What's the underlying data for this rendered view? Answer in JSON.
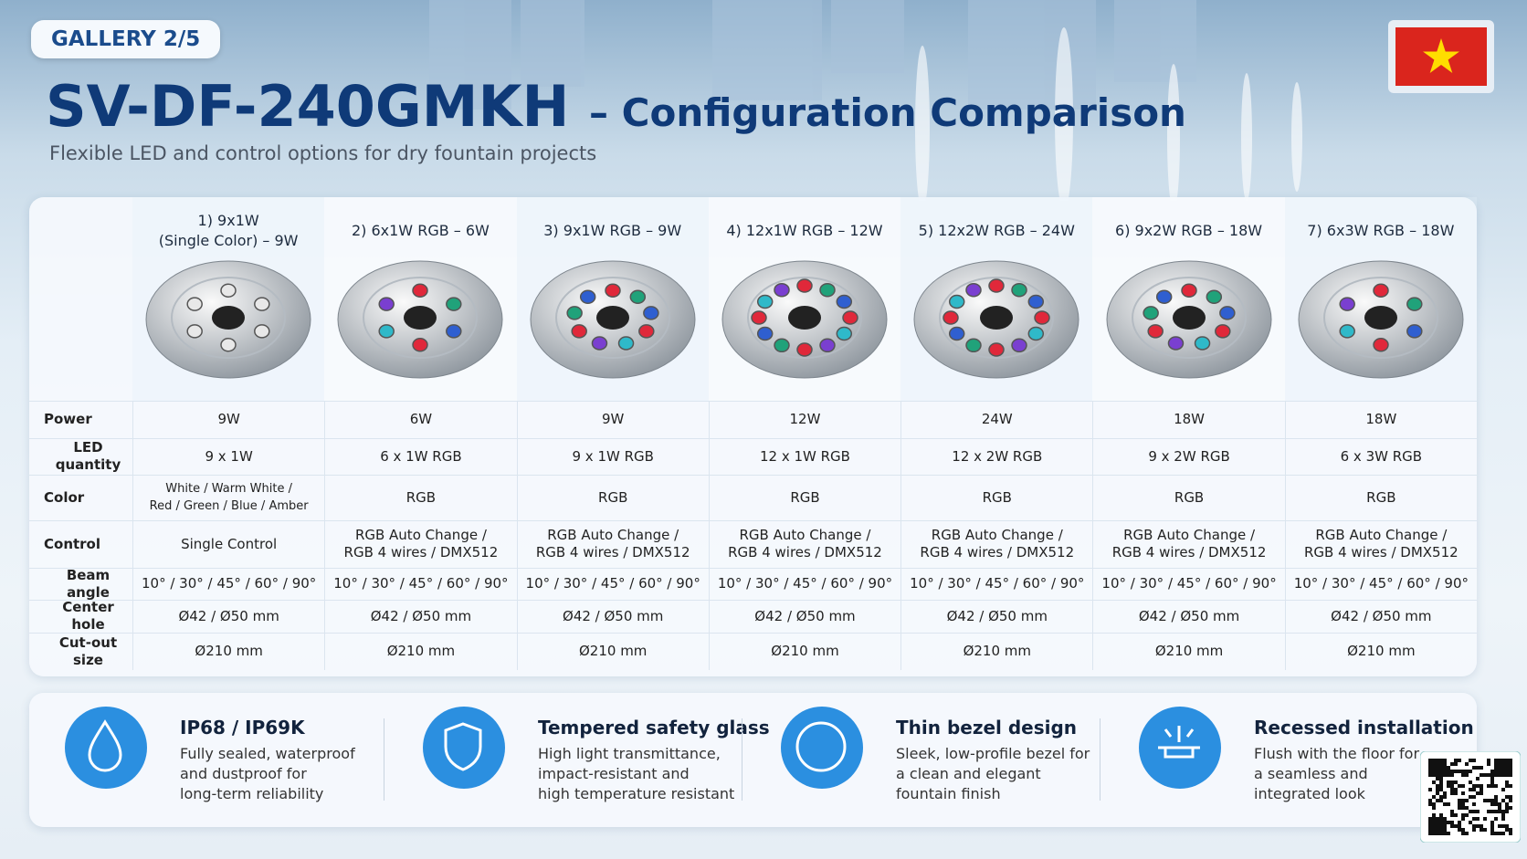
{
  "header": {
    "badge": "GALLERY 2/5",
    "title": "SV-DF-240GMKH",
    "title_suffix": "– Configuration Comparison",
    "subtitle": "Flexible LED and control options for dry fountain projects"
  },
  "table": {
    "columns": [
      [
        "1) 9x1W",
        "(Single Color) – 9W"
      ],
      "2) 6x1W RGB – 6W",
      "3) 9x1W RGB – 9W",
      "4) 12x1W RGB – 12W",
      "5) 12x2W RGB – 24W",
      "6) 9x2W RGB – 18W",
      "7) 6x3W RGB – 18W"
    ],
    "rows": [
      {
        "label": "Power",
        "cells": [
          "9W",
          "6W",
          "9W",
          "12W",
          "24W",
          "18W",
          "18W"
        ]
      },
      {
        "label": "LED quantity",
        "cells": [
          "9 x 1W",
          "6 x 1W RGB",
          "9 x 1W RGB",
          "12 x 1W RGB",
          "12 x 2W RGB",
          "9 x 2W RGB",
          "6 x 3W RGB"
        ]
      },
      {
        "label": "Color",
        "cells": [
          [
            "White / Warm White /",
            "Red / Green / Blue / Amber"
          ],
          "RGB",
          "RGB",
          "RGB",
          "RGB",
          "RGB",
          "RGB"
        ]
      },
      {
        "label": "Control",
        "cells": [
          "Single Control",
          [
            "RGB Auto Change /",
            "RGB 4 wires / DMX512"
          ],
          [
            "RGB Auto Change /",
            "RGB 4 wires / DMX512"
          ],
          [
            "RGB Auto Change /",
            "RGB 4 wires / DMX512"
          ],
          [
            "RGB Auto Change /",
            "RGB 4 wires / DMX512"
          ],
          [
            "RGB Auto Change /",
            "RGB 4 wires / DMX512"
          ],
          [
            "RGB Auto Change /",
            "RGB 4 wires / DMX512"
          ]
        ]
      },
      {
        "label": "Beam angle",
        "cells": [
          "10° / 30° / 45° / 60° / 90°",
          "10° / 30° / 45° / 60° / 90°",
          "10° / 30° / 45° / 60° / 90°",
          "10° / 30° / 45° / 60° / 90°",
          "10° / 30° / 45° / 60° / 90°",
          "10° / 30° / 45° / 60° / 90°",
          "10° / 30° / 45° / 60° / 90°"
        ]
      },
      {
        "label": "Center hole",
        "cells": [
          "Ø42 / Ø50 mm",
          "Ø42 / Ø50 mm",
          "Ø42 / Ø50 mm",
          "Ø42 / Ø50 mm",
          "Ø42 / Ø50 mm",
          "Ø42 / Ø50 mm",
          "Ø42 / Ø50 mm"
        ]
      },
      {
        "label": "Cut-out size",
        "cells": [
          "Ø210 mm",
          "Ø210 mm",
          "Ø210 mm",
          "Ø210 mm",
          "Ø210 mm",
          "Ø210 mm",
          "Ø210 mm"
        ]
      }
    ]
  },
  "features": [
    {
      "title": "IP68 / IP69K",
      "lines": [
        "Fully sealed, waterproof",
        "and dustproof for",
        "long-term reliability"
      ]
    },
    {
      "title": "Tempered safety glass",
      "lines": [
        "High light transmittance,",
        "impact-resistant and",
        "high temperature resistant"
      ]
    },
    {
      "title": "Thin bezel design",
      "lines": [
        "Sleek, low-profile bezel for",
        "a clean and elegant",
        "fountain finish"
      ]
    },
    {
      "title": "Recessed installation",
      "lines": [
        "Flush with the floor for",
        "a seamless and",
        "integrated look"
      ]
    }
  ]
}
